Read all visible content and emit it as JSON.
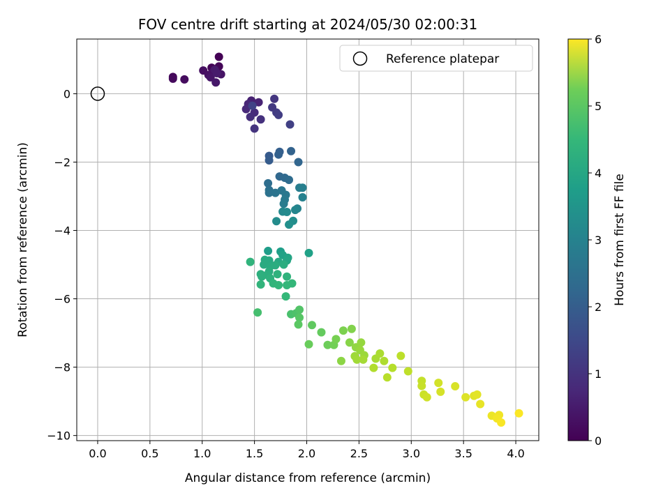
{
  "chart_data": {
    "type": "scatter",
    "title": "FOV centre drift starting at 2024/05/30 02:00:31",
    "xlabel": "Angular distance from reference (arcmin)",
    "ylabel": "Rotation from reference (arcmin)",
    "xlim": [
      -0.2,
      4.22
    ],
    "ylim": [
      -10.15,
      1.6
    ],
    "xticks": [
      0.0,
      0.5,
      1.0,
      1.5,
      2.0,
      2.5,
      3.0,
      3.5,
      4.0
    ],
    "xtick_labels": [
      "0.0",
      "0.5",
      "1.0",
      "1.5",
      "2.0",
      "2.5",
      "3.0",
      "3.5",
      "4.0"
    ],
    "yticks": [
      0,
      -2,
      -4,
      -6,
      -8,
      -10
    ],
    "ytick_labels": [
      "0",
      "−2",
      "−4",
      "−6",
      "−8",
      "−10"
    ],
    "grid": true,
    "legend": {
      "position": "top-right",
      "entries": [
        "Reference platepar"
      ]
    },
    "reference_point": {
      "x": 0.0,
      "y": 0.0
    },
    "colorbar": {
      "label": "Hours from first FF file",
      "range": [
        0,
        6
      ],
      "ticks": [
        0,
        1,
        2,
        3,
        4,
        5,
        6
      ],
      "tick_labels": [
        "0",
        "1",
        "2",
        "3",
        "4",
        "5",
        "6"
      ],
      "colormap": "viridis"
    },
    "points": [
      {
        "x": 1.16,
        "y": 1.08,
        "t": 0.02
      },
      {
        "x": 1.09,
        "y": 0.76,
        "t": 0.05
      },
      {
        "x": 1.16,
        "y": 0.8,
        "t": 0.08
      },
      {
        "x": 0.72,
        "y": 0.49,
        "t": 0.12
      },
      {
        "x": 0.72,
        "y": 0.44,
        "t": 0.15
      },
      {
        "x": 0.83,
        "y": 0.42,
        "t": 0.18
      },
      {
        "x": 1.01,
        "y": 0.68,
        "t": 0.22
      },
      {
        "x": 1.06,
        "y": 0.55,
        "t": 0.25
      },
      {
        "x": 1.1,
        "y": 0.62,
        "t": 0.28
      },
      {
        "x": 1.18,
        "y": 0.57,
        "t": 0.32
      },
      {
        "x": 1.08,
        "y": 0.48,
        "t": 0.35
      },
      {
        "x": 1.13,
        "y": 0.33,
        "t": 0.38
      },
      {
        "x": 1.12,
        "y": 0.7,
        "t": 0.42
      },
      {
        "x": 1.14,
        "y": 0.6,
        "t": 0.45
      },
      {
        "x": 1.47,
        "y": -0.2,
        "t": 0.55
      },
      {
        "x": 1.54,
        "y": -0.25,
        "t": 0.6
      },
      {
        "x": 1.44,
        "y": -0.3,
        "t": 0.65
      },
      {
        "x": 1.42,
        "y": -0.45,
        "t": 0.7
      },
      {
        "x": 1.5,
        "y": -0.55,
        "t": 0.75
      },
      {
        "x": 1.46,
        "y": -0.68,
        "t": 0.8
      },
      {
        "x": 1.56,
        "y": -0.75,
        "t": 0.85
      },
      {
        "x": 1.5,
        "y": -1.02,
        "t": 0.9
      },
      {
        "x": 1.69,
        "y": -0.15,
        "t": 0.95
      },
      {
        "x": 1.67,
        "y": -0.4,
        "t": 1.0
      },
      {
        "x": 1.71,
        "y": -0.55,
        "t": 1.05
      },
      {
        "x": 1.73,
        "y": -0.62,
        "t": 1.1
      },
      {
        "x": 1.84,
        "y": -0.9,
        "t": 1.15
      },
      {
        "x": 1.48,
        "y": -0.35,
        "t": 1.2
      },
      {
        "x": 1.64,
        "y": -1.82,
        "t": 1.7
      },
      {
        "x": 1.64,
        "y": -1.95,
        "t": 1.75
      },
      {
        "x": 1.74,
        "y": -1.7,
        "t": 1.8
      },
      {
        "x": 1.73,
        "y": -1.78,
        "t": 1.85
      },
      {
        "x": 1.85,
        "y": -1.68,
        "t": 1.9
      },
      {
        "x": 1.92,
        "y": -2.0,
        "t": 1.95
      },
      {
        "x": 1.74,
        "y": -2.42,
        "t": 2.0
      },
      {
        "x": 1.79,
        "y": -2.46,
        "t": 2.05
      },
      {
        "x": 1.83,
        "y": -2.52,
        "t": 2.1
      },
      {
        "x": 1.63,
        "y": -2.62,
        "t": 2.15
      },
      {
        "x": 1.64,
        "y": -2.82,
        "t": 2.2
      },
      {
        "x": 1.64,
        "y": -2.9,
        "t": 2.25
      },
      {
        "x": 1.7,
        "y": -2.9,
        "t": 2.3
      },
      {
        "x": 1.76,
        "y": -2.83,
        "t": 2.35
      },
      {
        "x": 1.8,
        "y": -2.96,
        "t": 2.4
      },
      {
        "x": 1.79,
        "y": -3.1,
        "t": 2.45
      },
      {
        "x": 1.78,
        "y": -3.22,
        "t": 2.5
      },
      {
        "x": 1.93,
        "y": -2.75,
        "t": 2.55
      },
      {
        "x": 1.96,
        "y": -2.75,
        "t": 2.6
      },
      {
        "x": 1.96,
        "y": -3.03,
        "t": 2.65
      },
      {
        "x": 1.91,
        "y": -3.36,
        "t": 2.7
      },
      {
        "x": 1.89,
        "y": -3.4,
        "t": 2.75
      },
      {
        "x": 1.77,
        "y": -3.45,
        "t": 2.8
      },
      {
        "x": 1.81,
        "y": -3.46,
        "t": 2.85
      },
      {
        "x": 1.71,
        "y": -3.73,
        "t": 2.9
      },
      {
        "x": 1.87,
        "y": -3.72,
        "t": 2.95
      },
      {
        "x": 1.83,
        "y": -3.83,
        "t": 3.0
      },
      {
        "x": 1.63,
        "y": -4.6,
        "t": 3.3
      },
      {
        "x": 1.75,
        "y": -4.62,
        "t": 3.35
      },
      {
        "x": 2.02,
        "y": -4.66,
        "t": 3.4
      },
      {
        "x": 1.77,
        "y": -4.72,
        "t": 3.45
      },
      {
        "x": 1.82,
        "y": -4.8,
        "t": 3.5
      },
      {
        "x": 1.81,
        "y": -4.88,
        "t": 3.55
      },
      {
        "x": 1.73,
        "y": -4.92,
        "t": 3.6
      },
      {
        "x": 1.64,
        "y": -4.88,
        "t": 3.62
      },
      {
        "x": 1.6,
        "y": -4.86,
        "t": 3.64
      },
      {
        "x": 1.59,
        "y": -5.0,
        "t": 3.66
      },
      {
        "x": 1.65,
        "y": -5.05,
        "t": 3.68
      },
      {
        "x": 1.7,
        "y": -5.02,
        "t": 3.7
      },
      {
        "x": 1.78,
        "y": -5.0,
        "t": 3.72
      },
      {
        "x": 1.64,
        "y": -5.2,
        "t": 3.74
      },
      {
        "x": 1.62,
        "y": -5.3,
        "t": 3.76
      },
      {
        "x": 1.56,
        "y": -5.28,
        "t": 3.78
      },
      {
        "x": 1.57,
        "y": -5.35,
        "t": 3.8
      },
      {
        "x": 1.65,
        "y": -5.4,
        "t": 3.82
      },
      {
        "x": 1.72,
        "y": -5.28,
        "t": 3.84
      },
      {
        "x": 1.81,
        "y": -5.35,
        "t": 3.86
      },
      {
        "x": 1.46,
        "y": -4.92,
        "t": 3.88
      },
      {
        "x": 1.56,
        "y": -5.58,
        "t": 3.9
      },
      {
        "x": 1.68,
        "y": -5.55,
        "t": 3.92
      },
      {
        "x": 1.73,
        "y": -5.6,
        "t": 3.94
      },
      {
        "x": 1.81,
        "y": -5.6,
        "t": 3.96
      },
      {
        "x": 1.86,
        "y": -5.55,
        "t": 3.98
      },
      {
        "x": 1.8,
        "y": -5.93,
        "t": 4.0
      },
      {
        "x": 1.53,
        "y": -6.4,
        "t": 4.2
      },
      {
        "x": 1.85,
        "y": -6.45,
        "t": 4.25
      },
      {
        "x": 1.9,
        "y": -6.42,
        "t": 4.3
      },
      {
        "x": 1.93,
        "y": -6.32,
        "t": 4.35
      },
      {
        "x": 1.93,
        "y": -6.55,
        "t": 4.4
      },
      {
        "x": 1.92,
        "y": -6.75,
        "t": 4.45
      },
      {
        "x": 2.05,
        "y": -6.77,
        "t": 4.5
      },
      {
        "x": 2.14,
        "y": -6.98,
        "t": 4.55
      },
      {
        "x": 2.02,
        "y": -7.33,
        "t": 4.6
      },
      {
        "x": 2.2,
        "y": -7.35,
        "t": 4.65
      },
      {
        "x": 2.26,
        "y": -7.35,
        "t": 4.7
      },
      {
        "x": 2.28,
        "y": -7.18,
        "t": 4.75
      },
      {
        "x": 2.35,
        "y": -6.93,
        "t": 4.8
      },
      {
        "x": 2.43,
        "y": -6.88,
        "t": 4.85
      },
      {
        "x": 2.41,
        "y": -7.28,
        "t": 4.9
      },
      {
        "x": 2.33,
        "y": -7.82,
        "t": 4.95
      },
      {
        "x": 2.47,
        "y": -7.42,
        "t": 5.0
      },
      {
        "x": 2.52,
        "y": -7.28,
        "t": 5.03
      },
      {
        "x": 2.51,
        "y": -7.5,
        "t": 5.06
      },
      {
        "x": 2.55,
        "y": -7.65,
        "t": 5.09
      },
      {
        "x": 2.46,
        "y": -7.68,
        "t": 5.12
      },
      {
        "x": 2.48,
        "y": -7.78,
        "t": 5.15
      },
      {
        "x": 2.54,
        "y": -7.78,
        "t": 5.18
      },
      {
        "x": 2.66,
        "y": -7.75,
        "t": 5.21
      },
      {
        "x": 2.7,
        "y": -7.6,
        "t": 5.24
      },
      {
        "x": 2.74,
        "y": -7.82,
        "t": 5.27
      },
      {
        "x": 2.64,
        "y": -8.02,
        "t": 5.3
      },
      {
        "x": 2.82,
        "y": -8.02,
        "t": 5.33
      },
      {
        "x": 2.77,
        "y": -8.3,
        "t": 5.36
      },
      {
        "x": 2.9,
        "y": -7.67,
        "t": 5.4
      },
      {
        "x": 2.97,
        "y": -8.12,
        "t": 5.43
      },
      {
        "x": 3.1,
        "y": -8.4,
        "t": 5.47
      },
      {
        "x": 3.1,
        "y": -8.55,
        "t": 5.5
      },
      {
        "x": 3.12,
        "y": -8.8,
        "t": 5.54
      },
      {
        "x": 3.15,
        "y": -8.88,
        "t": 5.57
      },
      {
        "x": 3.26,
        "y": -8.46,
        "t": 5.6
      },
      {
        "x": 3.28,
        "y": -8.72,
        "t": 5.63
      },
      {
        "x": 3.42,
        "y": -8.56,
        "t": 5.66
      },
      {
        "x": 3.52,
        "y": -8.88,
        "t": 5.7
      },
      {
        "x": 3.6,
        "y": -8.84,
        "t": 5.73
      },
      {
        "x": 3.63,
        "y": -8.8,
        "t": 5.76
      },
      {
        "x": 3.66,
        "y": -9.08,
        "t": 5.8
      },
      {
        "x": 3.77,
        "y": -9.42,
        "t": 5.84
      },
      {
        "x": 3.84,
        "y": -9.4,
        "t": 5.88
      },
      {
        "x": 3.82,
        "y": -9.5,
        "t": 5.91
      },
      {
        "x": 3.86,
        "y": -9.62,
        "t": 5.95
      },
      {
        "x": 4.03,
        "y": -9.35,
        "t": 5.98
      }
    ]
  }
}
